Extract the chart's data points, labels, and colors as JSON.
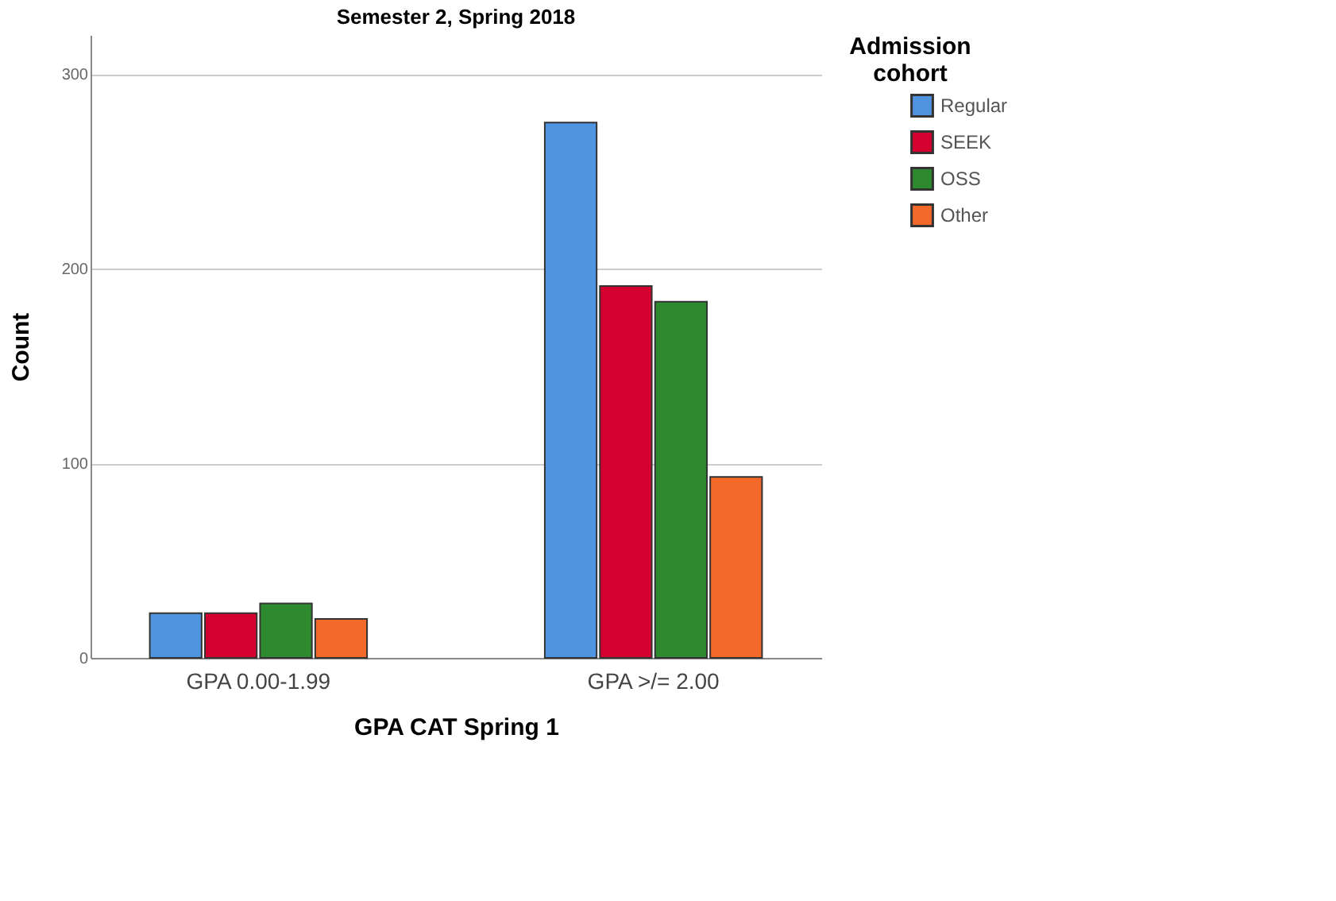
{
  "chart_data": {
    "type": "bar",
    "title": "Semester 2, Spring 2018",
    "xlabel": "GPA CAT Spring 1",
    "ylabel": "Count",
    "legend_title": "Admission cohort",
    "categories": [
      "GPA 0.00-1.99",
      "GPA >/= 2.00"
    ],
    "series": [
      {
        "name": "Regular",
        "color": "#5094e0",
        "values": [
          23,
          275
        ]
      },
      {
        "name": "SEEK",
        "color": "#d4002f",
        "values": [
          23,
          191
        ]
      },
      {
        "name": "OSS",
        "color": "#2e8a2e",
        "values": [
          28,
          183
        ]
      },
      {
        "name": "Other",
        "color": "#f2692a",
        "values": [
          20,
          93
        ]
      }
    ],
    "ylim": [
      0,
      320
    ],
    "yticks": [
      0,
      100,
      200,
      300
    ],
    "grid": "y",
    "legend": "top right"
  }
}
